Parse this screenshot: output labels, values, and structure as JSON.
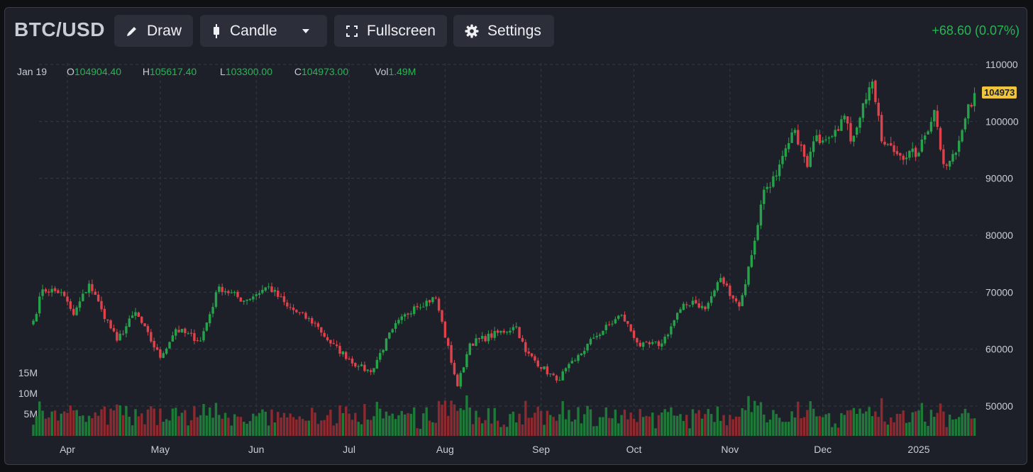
{
  "header": {
    "symbol": "BTC/USD",
    "draw_label": "Draw",
    "chart_type_label": "Candle",
    "fullscreen_label": "Fullscreen",
    "settings_label": "Settings",
    "change_text": "+68.60 (0.07%)"
  },
  "ohlc": {
    "date": "Jan 19",
    "o_label": "O",
    "o_value": "104904.40",
    "h_label": "H",
    "h_value": "105617.40",
    "l_label": "L",
    "l_value": "103300.00",
    "c_label": "C",
    "c_value": "104973.00",
    "vol_label": "Vol",
    "vol_value": "1.49M"
  },
  "colors": {
    "up": "#26a34a",
    "down": "#e0424c",
    "up_vol": "#1f7a3a",
    "down_vol": "#8c2a30",
    "background": "#1e2029",
    "last_price_tag": "#f0c53c"
  },
  "chart_data": {
    "type": "candlestick",
    "title": "BTC/USD",
    "x_tick_labels": [
      "Apr",
      "May",
      "Jun",
      "Jul",
      "Aug",
      "Sep",
      "Oct",
      "Nov",
      "Dec",
      "2025"
    ],
    "y_ticks": [
      50000,
      60000,
      70000,
      80000,
      90000,
      100000,
      110000
    ],
    "ylim": [
      45000,
      111000
    ],
    "volume_ticks": [
      "5M",
      "10M",
      "15M"
    ],
    "last_price": 104973,
    "grid": true,
    "close_anchors": [
      [
        "2024-03-21",
        65000
      ],
      [
        "2024-03-24",
        70500
      ],
      [
        "2024-03-30",
        70000
      ],
      [
        "2024-04-03",
        66000
      ],
      [
        "2024-04-08",
        71500
      ],
      [
        "2024-04-12",
        67000
      ],
      [
        "2024-04-17",
        61500
      ],
      [
        "2024-04-23",
        66500
      ],
      [
        "2024-05-01",
        58500
      ],
      [
        "2024-05-06",
        63500
      ],
      [
        "2024-05-14",
        61500
      ],
      [
        "2024-05-20",
        71000
      ],
      [
        "2024-05-28",
        68500
      ],
      [
        "2024-06-05",
        71000
      ],
      [
        "2024-06-11",
        67500
      ],
      [
        "2024-06-20",
        64500
      ],
      [
        "2024-06-25",
        61000
      ],
      [
        "2024-07-04",
        57000
      ],
      [
        "2024-07-08",
        56000
      ],
      [
        "2024-07-15",
        63500
      ],
      [
        "2024-07-22",
        67500
      ],
      [
        "2024-07-29",
        69000
      ],
      [
        "2024-08-05",
        53500
      ],
      [
        "2024-08-09",
        61000
      ],
      [
        "2024-08-24",
        64000
      ],
      [
        "2024-08-27",
        59500
      ],
      [
        "2024-09-06",
        54500
      ],
      [
        "2024-09-12",
        58000
      ],
      [
        "2024-09-18",
        62000
      ],
      [
        "2024-09-27",
        66000
      ],
      [
        "2024-10-03",
        60500
      ],
      [
        "2024-10-10",
        61000
      ],
      [
        "2024-10-16",
        67000
      ],
      [
        "2024-10-20",
        68500
      ],
      [
        "2024-10-24",
        67000
      ],
      [
        "2024-10-29",
        72500
      ],
      [
        "2024-11-04",
        67500
      ],
      [
        "2024-11-05",
        69500
      ],
      [
        "2024-11-08",
        76500
      ],
      [
        "2024-11-12",
        88000
      ],
      [
        "2024-11-16",
        90500
      ],
      [
        "2024-11-22",
        98500
      ],
      [
        "2024-11-26",
        92000
      ],
      [
        "2024-11-28",
        96500
      ],
      [
        "2024-12-05",
        98500
      ],
      [
        "2024-12-08",
        101000
      ],
      [
        "2024-12-10",
        96500
      ],
      [
        "2024-12-16",
        106000
      ],
      [
        "2024-12-17",
        107000
      ],
      [
        "2024-12-20",
        96500
      ],
      [
        "2024-12-26",
        94000
      ],
      [
        "2025-01-01",
        94500
      ],
      [
        "2025-01-06",
        102000
      ],
      [
        "2025-01-09",
        92500
      ],
      [
        "2025-01-13",
        94500
      ],
      [
        "2025-01-16",
        100500
      ],
      [
        "2025-01-19",
        104973
      ]
    ]
  }
}
